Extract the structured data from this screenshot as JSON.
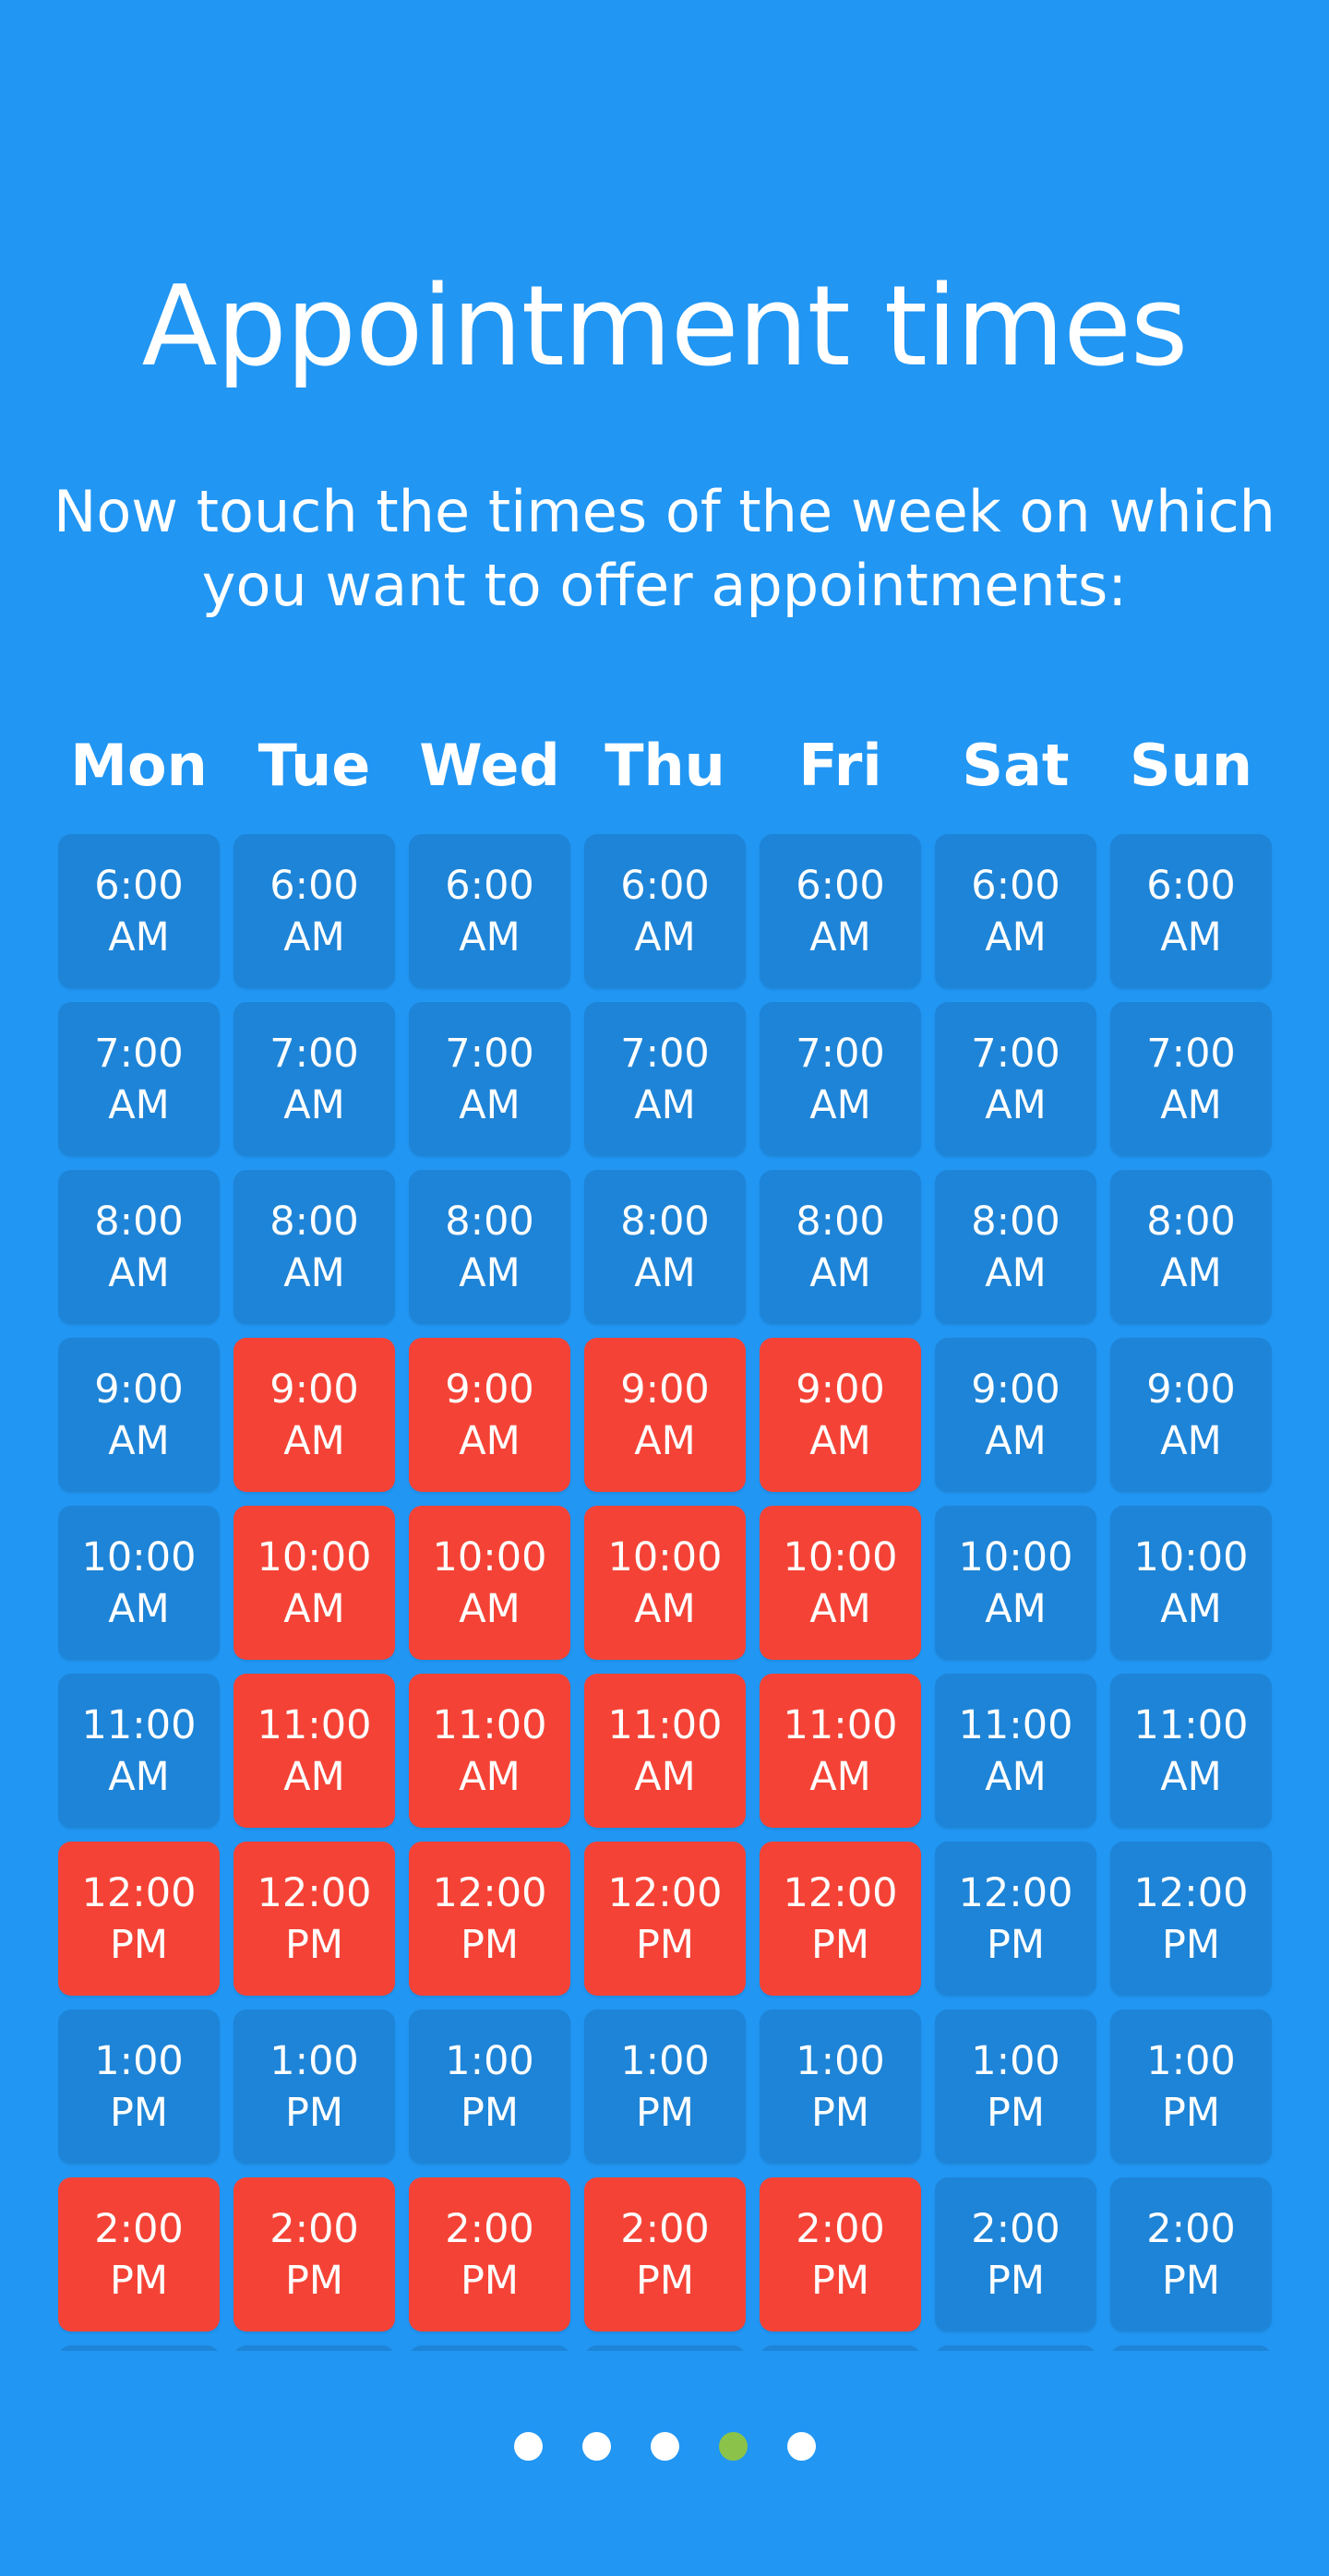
{
  "header": {
    "title": "Appointment times",
    "subtitle": "Now touch the times of the week on which you want to offer appointments:"
  },
  "colors": {
    "background": "#2196F3",
    "slot": "#1E84D7",
    "slot_selected": "#F44336",
    "dot": "#FFFFFF",
    "dot_active": "#8BC34A"
  },
  "days": [
    "Mon",
    "Tue",
    "Wed",
    "Thu",
    "Fri",
    "Sat",
    "Sun"
  ],
  "times": [
    {
      "time": "6:00",
      "period": "AM",
      "selected": [
        false,
        false,
        false,
        false,
        false,
        false,
        false
      ]
    },
    {
      "time": "7:00",
      "period": "AM",
      "selected": [
        false,
        false,
        false,
        false,
        false,
        false,
        false
      ]
    },
    {
      "time": "8:00",
      "period": "AM",
      "selected": [
        false,
        false,
        false,
        false,
        false,
        false,
        false
      ]
    },
    {
      "time": "9:00",
      "period": "AM",
      "selected": [
        false,
        true,
        true,
        true,
        true,
        false,
        false
      ]
    },
    {
      "time": "10:00",
      "period": "AM",
      "selected": [
        false,
        true,
        true,
        true,
        true,
        false,
        false
      ]
    },
    {
      "time": "11:00",
      "period": "AM",
      "selected": [
        false,
        true,
        true,
        true,
        true,
        false,
        false
      ]
    },
    {
      "time": "12:00",
      "period": "PM",
      "selected": [
        true,
        true,
        true,
        true,
        true,
        false,
        false
      ]
    },
    {
      "time": "1:00",
      "period": "PM",
      "selected": [
        false,
        false,
        false,
        false,
        false,
        false,
        false
      ]
    },
    {
      "time": "2:00",
      "period": "PM",
      "selected": [
        true,
        true,
        true,
        true,
        true,
        false,
        false
      ]
    }
  ],
  "pager": {
    "count": 5,
    "active_index": 3
  }
}
